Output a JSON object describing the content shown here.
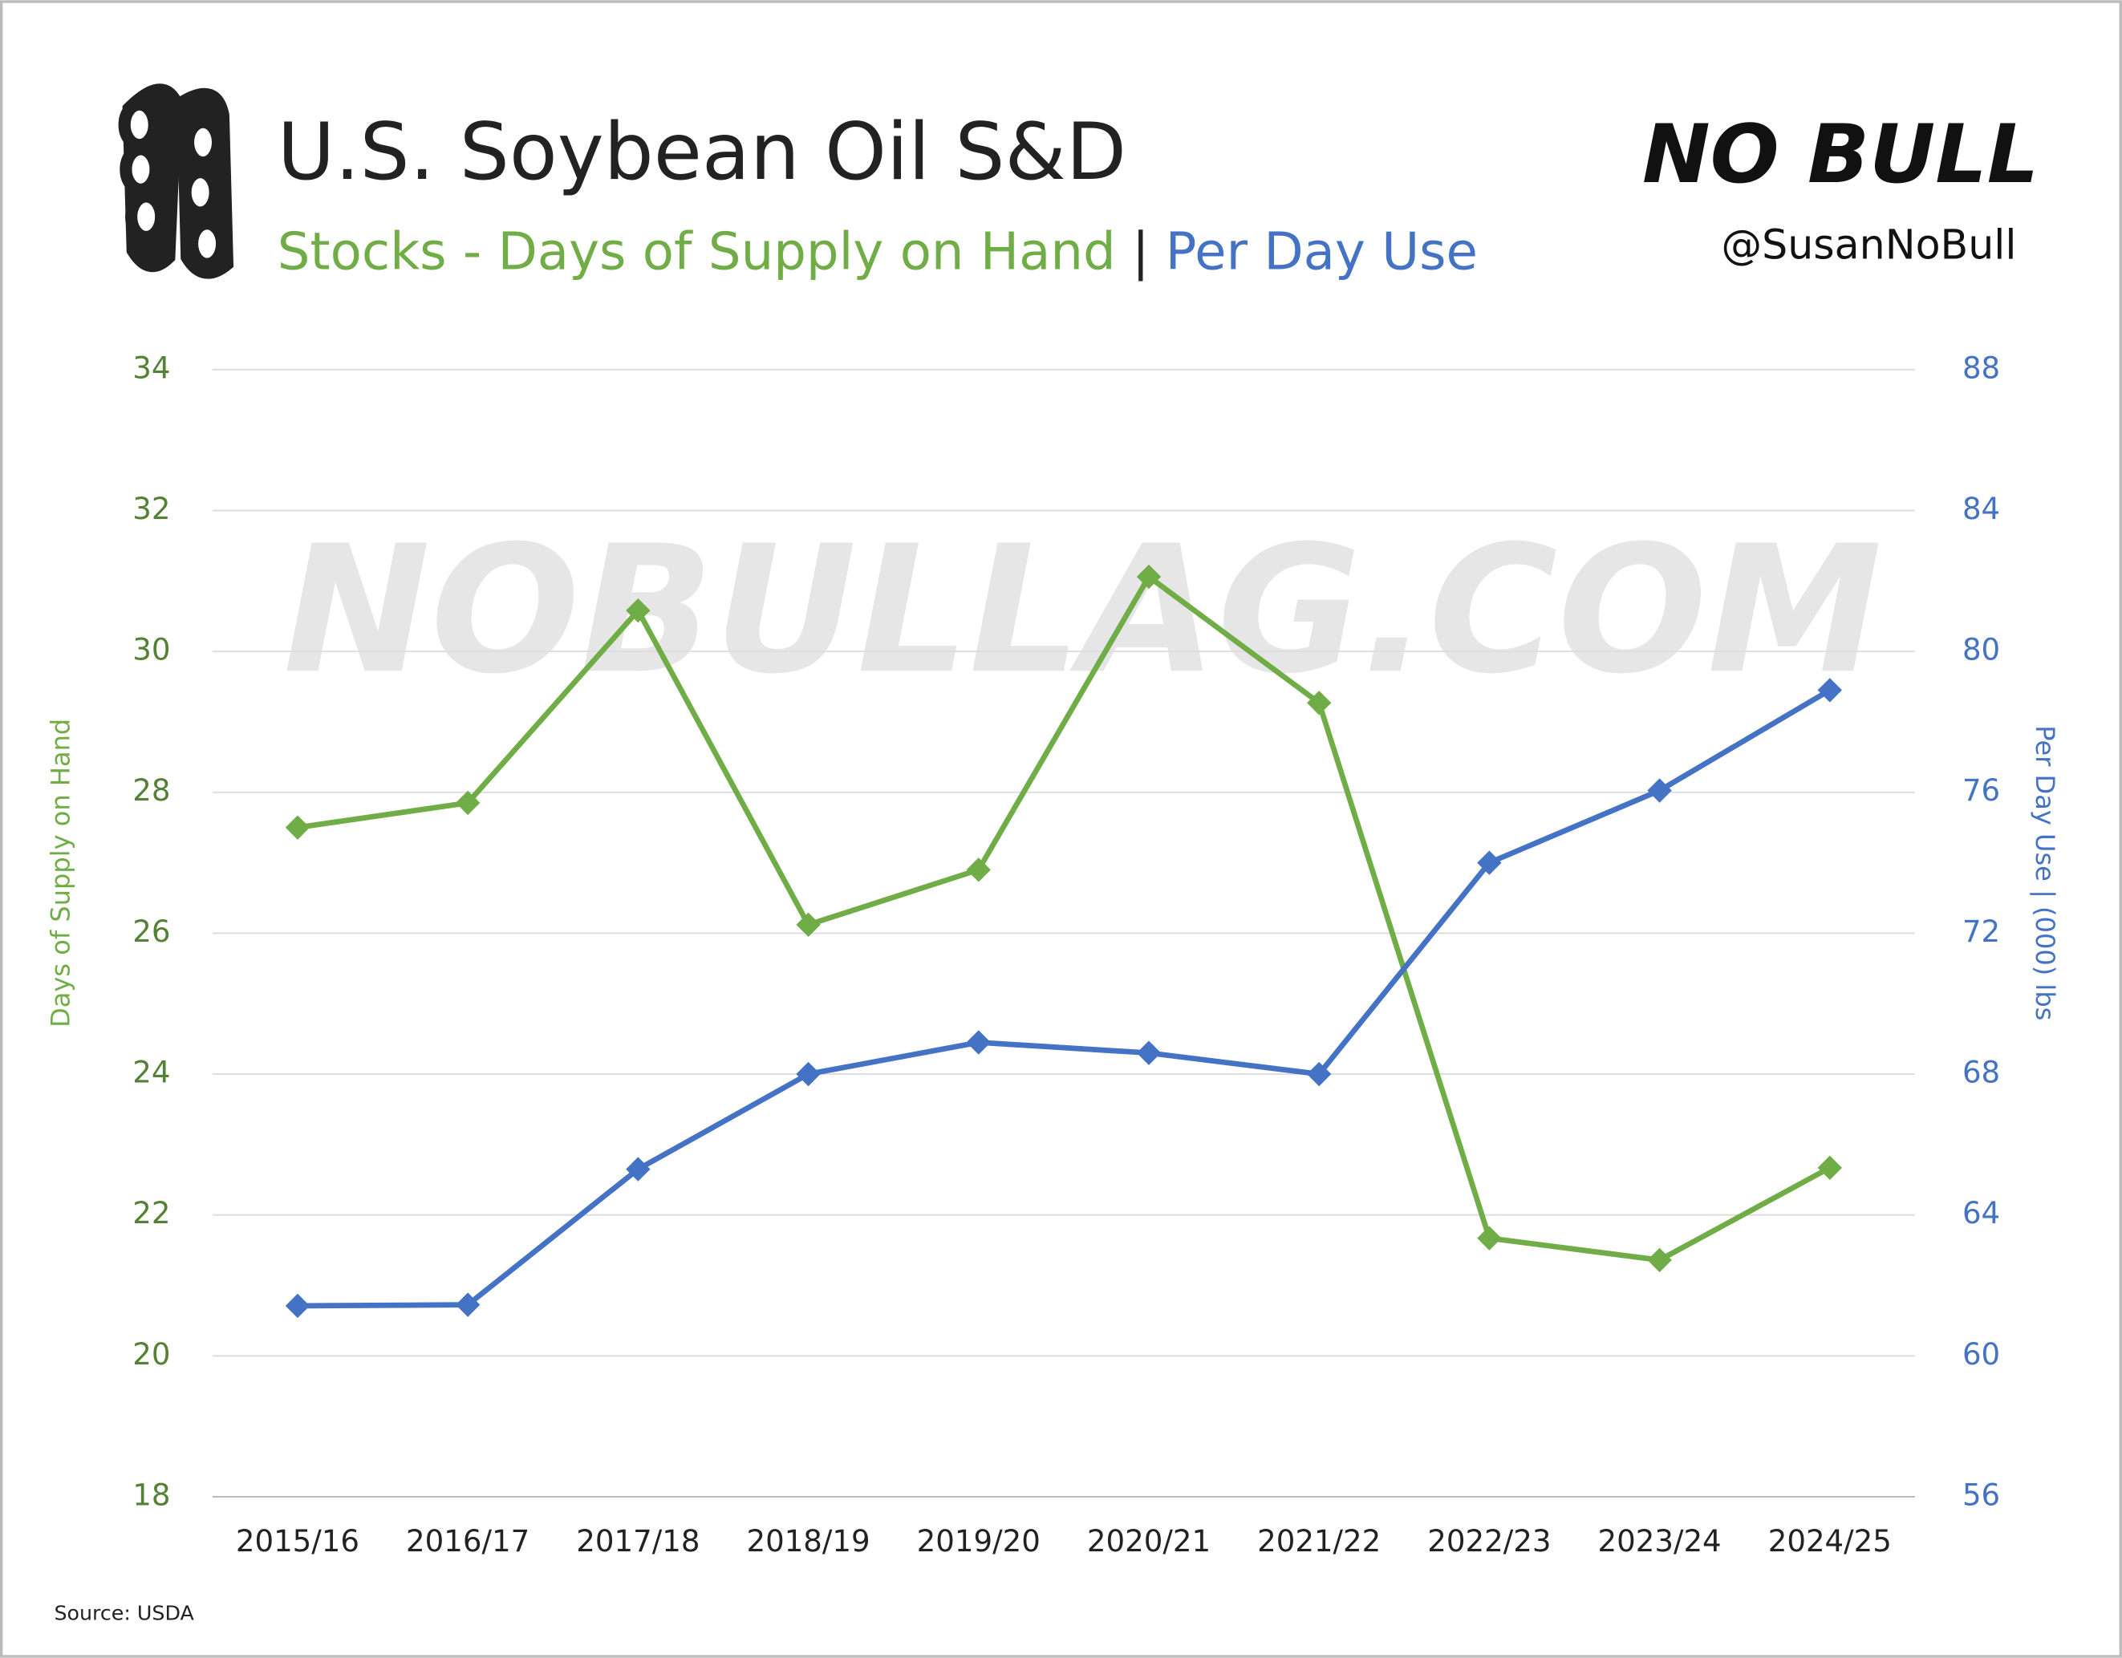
{
  "chart_data": {
    "type": "line",
    "title": "U.S. Soybean Oil S&D",
    "subtitle_left": "Stocks - Days of Supply on Hand",
    "subtitle_separator": "|",
    "subtitle_right": "Per Day Use",
    "brand": "NO BULL",
    "handle": "@SusanNoBull",
    "watermark": "NOBULLAG.COM",
    "source": "Source: USDA",
    "y_label": "Days of Supply on Hand",
    "y2_label": "Per Day Use | (000) lbs",
    "categories": [
      "2015/16",
      "2016/17",
      "2017/18",
      "2018/19",
      "2019/20",
      "2020/21",
      "2021/22",
      "2022/23",
      "2023/24",
      "2024/25"
    ],
    "series": [
      {
        "name": "Stocks - Days of Supply on Hand",
        "color": "#70ad47",
        "axis": "y",
        "values": [
          27.5,
          27.85,
          30.58,
          26.12,
          26.9,
          31.06,
          29.27,
          21.67,
          21.36,
          22.67
        ]
      },
      {
        "name": "Per Day Use",
        "color": "#4472c4",
        "axis": "y2",
        "values": [
          61.42,
          61.45,
          65.3,
          68.0,
          68.9,
          68.6,
          68.0,
          74.0,
          76.05,
          78.9
        ]
      }
    ],
    "ylim": [
      18,
      34
    ],
    "yticks": [
      18,
      20,
      22,
      24,
      26,
      28,
      30,
      32,
      34
    ],
    "y2lim": [
      56,
      88
    ],
    "y2ticks": [
      56,
      60,
      64,
      68,
      72,
      76,
      80,
      84,
      88
    ],
    "grid": true
  }
}
